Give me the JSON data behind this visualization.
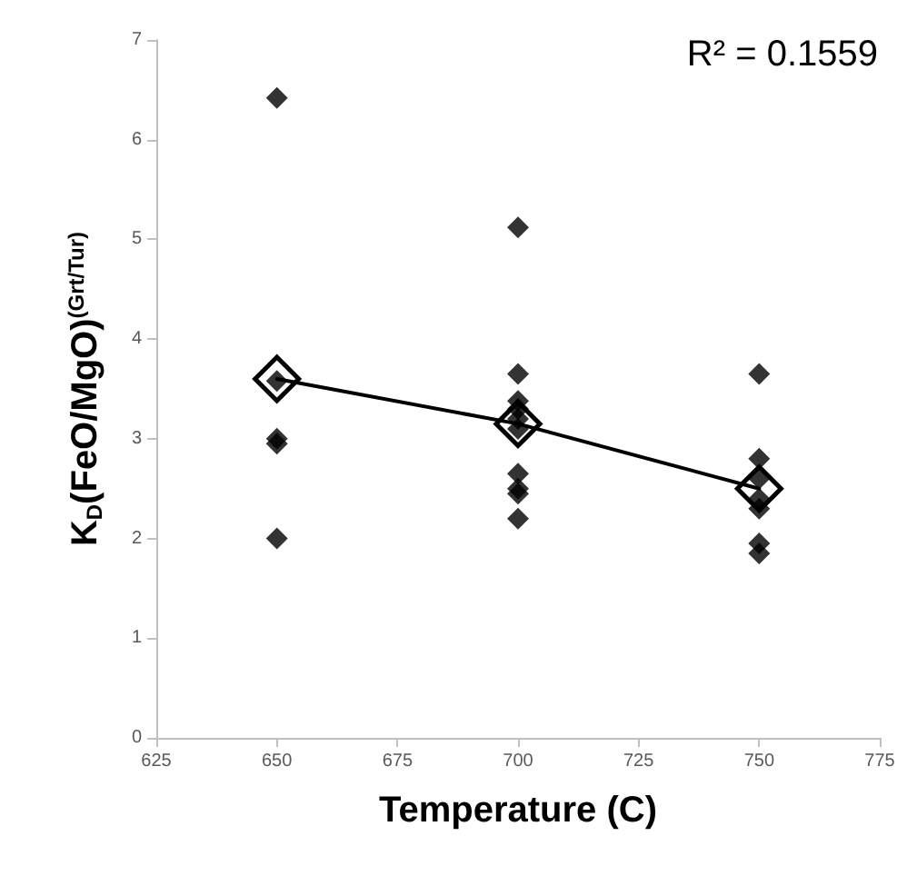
{
  "chart_data": {
    "type": "scatter",
    "xlabel": "Temperature (C)",
    "ylabel": "K$_{D}$(FeO/MgO)$^{(Grt/Tur)}$",
    "annotations": [
      "R² = 0.1559"
    ],
    "series": [
      {
        "color": "#000000",
        "marker": "diamond",
        "x": [
          650,
          650,
          650,
          650,
          650,
          700,
          700,
          700,
          700,
          700,
          700,
          700,
          700,
          700,
          700,
          750,
          750,
          750,
          750,
          750,
          750,
          750
        ],
        "values": [
          6.42,
          3.58,
          3.0,
          2.95,
          2.0,
          5.12,
          3.65,
          3.38,
          3.3,
          3.2,
          3.1,
          2.65,
          2.5,
          2.45,
          2.2,
          3.65,
          2.8,
          2.6,
          2.4,
          2.3,
          1.95,
          1.85
        ]
      },
      {
        "type": "line",
        "color": "#000000",
        "marker": "diamond",
        "line_style": "solid",
        "x": [
          650,
          700,
          750
        ],
        "values": [
          3.6,
          3.15,
          2.5
        ]
      }
    ],
    "xlim": [
      625,
      775
    ],
    "xticks": [
      625,
      650,
      675,
      700,
      725,
      750,
      775
    ],
    "ylim": [
      0,
      7
    ],
    "yticks": [
      0,
      1,
      2,
      3,
      4,
      5,
      6,
      7
    ],
    "grid": false
  }
}
